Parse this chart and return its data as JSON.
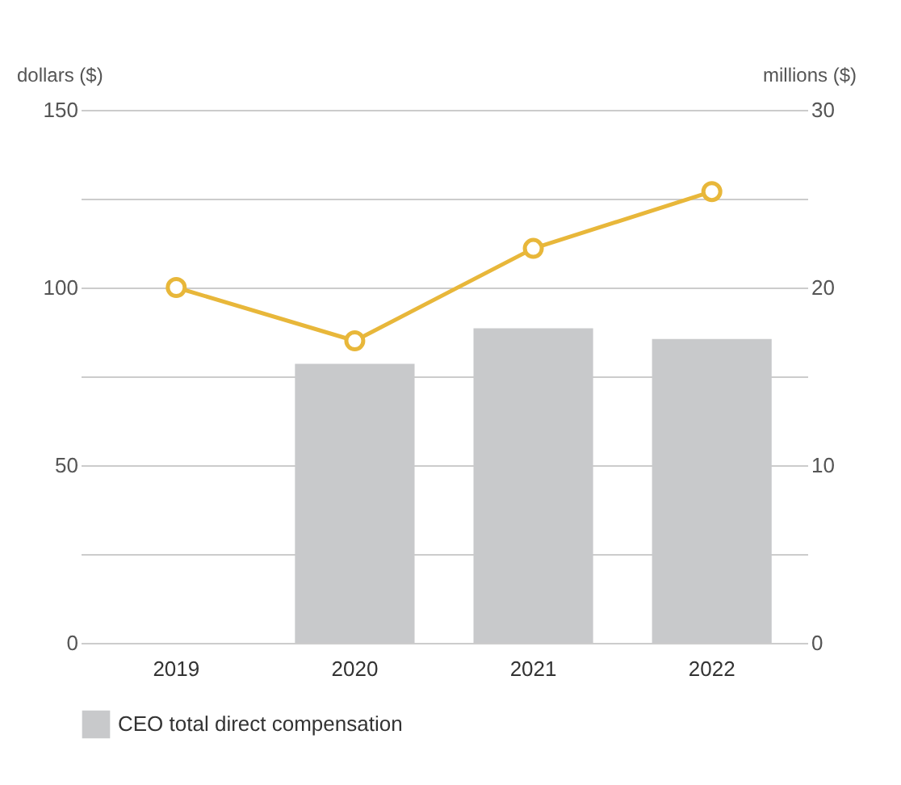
{
  "chart_data": {
    "type": "bar",
    "categories": [
      "2019",
      "2020",
      "2021",
      "2022"
    ],
    "ylabel": "dollars ($)",
    "y2label": "millions ($)",
    "ylim": [
      0,
      150
    ],
    "yticks": [
      0,
      {
        "value": 25,
        "label": null
      },
      50,
      {
        "value": 75,
        "label": null
      },
      100,
      {
        "value": 125,
        "label": null
      },
      150
    ],
    "y2lim": [
      0,
      30
    ],
    "y2ticks": [
      0,
      10,
      20,
      30
    ],
    "grid": "y",
    "legend": "bottom",
    "series": [
      {
        "name": "CEO total direct compensation",
        "axis": "y2",
        "color": "#c8c9cb",
        "values": [
          null,
          15.7,
          17.7,
          17.1
        ]
      },
      {
        "type": "line",
        "axis": "y",
        "color": "#e8b73a",
        "marker": "circle",
        "values": [
          100,
          85,
          111,
          127
        ]
      }
    ]
  }
}
